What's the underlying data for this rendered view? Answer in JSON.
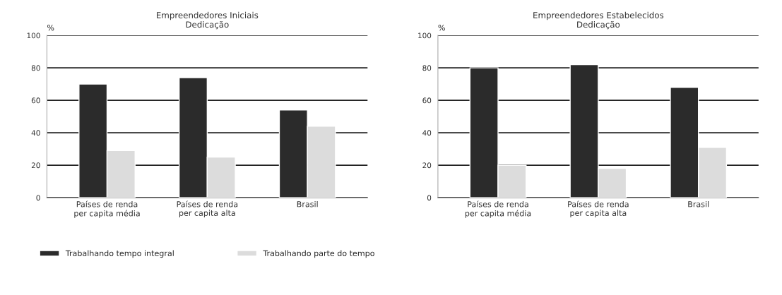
{
  "chart_data": [
    {
      "type": "bar",
      "title": "Empreendedores Iniciais\nDedicação",
      "ylabel": "%",
      "categories": [
        "Países de renda\nper capita média",
        "Países de renda\nper capita alta",
        "Brasil"
      ],
      "series": [
        {
          "name": "Trabalhando tempo integral",
          "color": "#2b2b2b",
          "values": [
            70,
            74,
            54
          ]
        },
        {
          "name": "Trabalhando parte do tempo",
          "color": "#dcdcdc",
          "values": [
            29,
            25,
            44
          ]
        }
      ],
      "ylim": [
        0,
        100
      ],
      "yticks": [
        0,
        20,
        40,
        60,
        80,
        100
      ],
      "grid": "y",
      "legend": "bottom"
    },
    {
      "type": "bar",
      "title": "Empreendedores Estabelecidos\nDedicação",
      "ylabel": "%",
      "categories": [
        "Países de renda\nper capita média",
        "Países de renda\nper capita alta",
        "Brasil"
      ],
      "series": [
        {
          "color": "#2b2b2b",
          "values": [
            80,
            82,
            68
          ]
        },
        {
          "color": "#dcdcdc",
          "values": [
            20,
            18,
            31
          ]
        }
      ],
      "ylim": [
        0,
        100
      ],
      "yticks": [
        0,
        20,
        40,
        60,
        80,
        100
      ],
      "grid": "y"
    }
  ]
}
